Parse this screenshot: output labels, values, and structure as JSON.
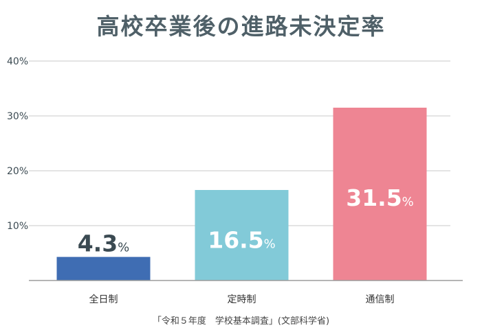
{
  "chart_data": {
    "type": "bar",
    "title": "高校卒業後の進路未決定率",
    "categories": [
      "全日制",
      "定時制",
      "通信制"
    ],
    "values": [
      4.3,
      16.5,
      31.5
    ],
    "bar_colors": [
      "#3f6db3",
      "#82cad8",
      "#ee8593"
    ],
    "value_label_colors": [
      "#3b4a52",
      "#ffffff",
      "#ffffff"
    ],
    "value_numbers": [
      "4.3",
      "16.5",
      "31.5"
    ],
    "value_unit": "%",
    "yticks": [
      "40%",
      "30%",
      "20%",
      "10%"
    ],
    "ytick_values": [
      40,
      30,
      20,
      10
    ],
    "ylim": [
      0,
      40
    ],
    "grid": true,
    "xlabel": "",
    "ylabel": "",
    "source": "「令和５年度　学校基本調査」(文部科学省)"
  }
}
